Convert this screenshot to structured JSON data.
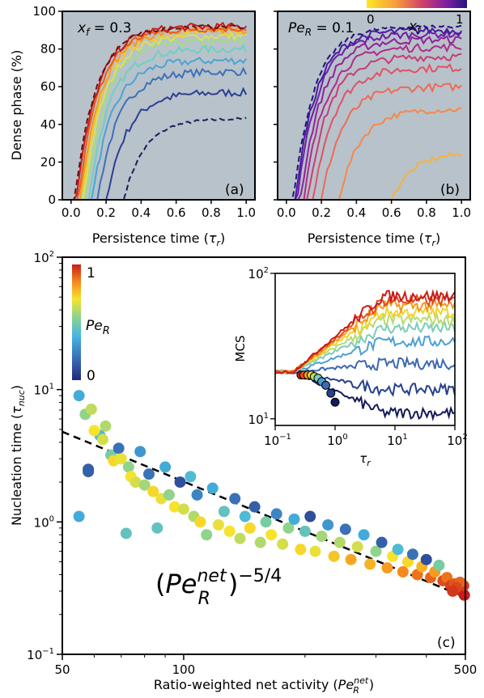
{
  "chart_data": [
    {
      "id": "a",
      "type": "line",
      "panel_label": "(a)",
      "annotation": "x_f = 0.3",
      "ylabel": "Dense phase (%)",
      "xlabel": "Persistence time (τ_r)",
      "xlim": [
        -0.05,
        1.05
      ],
      "ylim": [
        0,
        100
      ],
      "xticks": [
        "0.0",
        "0.2",
        "0.4",
        "0.6",
        "0.8",
        "1.0"
      ],
      "yticks": [
        "0",
        "20",
        "40",
        "60",
        "80",
        "100"
      ],
      "background": "#b8c2ca",
      "series": [
        {
          "color": "#1d1a5e",
          "dashed": true,
          "onset": 0.3,
          "plateau": 43
        },
        {
          "color": "#2a3f93",
          "onset": 0.2,
          "plateau": 57
        },
        {
          "color": "#3f6fb8",
          "onset": 0.15,
          "plateau": 68
        },
        {
          "color": "#4aa4d6",
          "onset": 0.12,
          "plateau": 74
        },
        {
          "color": "#6fcfc3",
          "onset": 0.1,
          "plateau": 80
        },
        {
          "color": "#a3dc83",
          "onset": 0.08,
          "plateau": 84
        },
        {
          "color": "#d7e35a",
          "onset": 0.07,
          "plateau": 87
        },
        {
          "color": "#f8c92b",
          "onset": 0.06,
          "plateau": 89
        },
        {
          "color": "#f59b1d",
          "onset": 0.05,
          "plateau": 90
        },
        {
          "color": "#ea5b1c",
          "onset": 0.04,
          "plateau": 91
        },
        {
          "color": "#c51b1b",
          "onset": 0.03,
          "plateau": 92
        },
        {
          "color": "#6b0f0f",
          "dashed": true,
          "onset": 0.02,
          "plateau": 92
        }
      ]
    },
    {
      "id": "b",
      "type": "line",
      "panel_label": "(b)",
      "annotation": "Pe_R = 0.1",
      "colorbar_label": "x_f",
      "colorbar_min": "0",
      "colorbar_max": "1",
      "xlabel": "Persistence time (τ_r)",
      "xlim": [
        -0.05,
        1.05
      ],
      "ylim": [
        0,
        100
      ],
      "xticks": [
        "0.0",
        "0.2",
        "0.4",
        "0.6",
        "0.8",
        "1.0"
      ],
      "background": "#b8c2ca",
      "series": [
        {
          "color": "#f5e12a",
          "dashed": true,
          "onset": 2.0,
          "plateau": 0
        },
        {
          "color": "#f7b23b",
          "onset": 0.6,
          "plateau": 25
        },
        {
          "color": "#f5894a",
          "onset": 0.3,
          "plateau": 48
        },
        {
          "color": "#ee6a55",
          "onset": 0.2,
          "plateau": 60
        },
        {
          "color": "#e05265",
          "onset": 0.15,
          "plateau": 70
        },
        {
          "color": "#c83c78",
          "onset": 0.12,
          "plateau": 76
        },
        {
          "color": "#ad2d8b",
          "onset": 0.1,
          "plateau": 81
        },
        {
          "color": "#8f239a",
          "onset": 0.08,
          "plateau": 85
        },
        {
          "color": "#6d1fa3",
          "onset": 0.06,
          "plateau": 88
        },
        {
          "color": "#4a1aa0",
          "onset": 0.05,
          "plateau": 90
        },
        {
          "color": "#20157a",
          "dashed": true,
          "onset": 0.04,
          "plateau": 92
        }
      ]
    },
    {
      "id": "c",
      "type": "scatter",
      "panel_label": "(c)",
      "xlabel": "Ratio-weighted net activity (Pe_R^net)",
      "ylabel": "Nucleation time (τ_nuc)",
      "xscale": "log",
      "yscale": "log",
      "xlim": [
        50,
        500
      ],
      "ylim": [
        0.1,
        100
      ],
      "xticks": [
        "50",
        "100",
        "500"
      ],
      "yticks": [
        "10^-1",
        "10^0",
        "10^1",
        "10^2"
      ],
      "colorbar_label": "Pe_R",
      "colorbar_min": "0",
      "colorbar_max": "1",
      "fit_label": "(Pe_R^net)^-5/4",
      "fit_line": [
        [
          50,
          4.8
        ],
        [
          500,
          0.27
        ]
      ],
      "points": [
        [
          55,
          9.0,
          0.35
        ],
        [
          55,
          1.1,
          0.35
        ],
        [
          58,
          2.4,
          0.15
        ],
        [
          58,
          2.5,
          0.15
        ],
        [
          57,
          6.5,
          0.55
        ],
        [
          59,
          7.1,
          0.62
        ],
        [
          62,
          4.5,
          0.4
        ],
        [
          60,
          4.9,
          0.7
        ],
        [
          63,
          4.2,
          0.65
        ],
        [
          64,
          5.3,
          0.6
        ],
        [
          66,
          3.2,
          0.5
        ],
        [
          67,
          2.9,
          0.72
        ],
        [
          69,
          3.6,
          0.2
        ],
        [
          70,
          3.0,
          0.68
        ],
        [
          72,
          0.82,
          0.45
        ],
        [
          73,
          2.6,
          0.55
        ],
        [
          74,
          2.2,
          0.7
        ],
        [
          76,
          2.0,
          0.65
        ],
        [
          78,
          3.4,
          0.3
        ],
        [
          80,
          1.9,
          0.58
        ],
        [
          82,
          2.3,
          0.2
        ],
        [
          84,
          1.7,
          0.72
        ],
        [
          86,
          0.9,
          0.45
        ],
        [
          88,
          1.5,
          0.68
        ],
        [
          90,
          2.6,
          0.35
        ],
        [
          92,
          1.6,
          0.55
        ],
        [
          95,
          1.3,
          0.7
        ],
        [
          98,
          2.0,
          0.1
        ],
        [
          100,
          1.25,
          0.65
        ],
        [
          104,
          2.2,
          0.4
        ],
        [
          106,
          1.1,
          0.6
        ],
        [
          108,
          1.6,
          0.25
        ],
        [
          110,
          1.0,
          0.72
        ],
        [
          114,
          0.8,
          0.55
        ],
        [
          118,
          1.8,
          0.35
        ],
        [
          122,
          0.95,
          0.68
        ],
        [
          126,
          1.2,
          0.45
        ],
        [
          130,
          0.85,
          0.7
        ],
        [
          134,
          1.5,
          0.2
        ],
        [
          138,
          0.75,
          0.62
        ],
        [
          142,
          1.1,
          0.4
        ],
        [
          146,
          0.9,
          0.72
        ],
        [
          150,
          1.3,
          0.15
        ],
        [
          155,
          0.7,
          0.6
        ],
        [
          160,
          1.0,
          0.5
        ],
        [
          165,
          0.8,
          0.7
        ],
        [
          170,
          1.15,
          0.25
        ],
        [
          176,
          0.68,
          0.65
        ],
        [
          182,
          0.9,
          0.55
        ],
        [
          188,
          1.05,
          0.35
        ],
        [
          195,
          0.62,
          0.72
        ],
        [
          200,
          0.85,
          0.45
        ],
        [
          206,
          1.1,
          0.1
        ],
        [
          212,
          0.6,
          0.68
        ],
        [
          220,
          0.78,
          0.58
        ],
        [
          228,
          0.95,
          0.3
        ],
        [
          236,
          0.55,
          0.75
        ],
        [
          244,
          0.7,
          0.6
        ],
        [
          252,
          0.88,
          0.2
        ],
        [
          260,
          0.52,
          0.8
        ],
        [
          270,
          0.65,
          0.65
        ],
        [
          280,
          0.8,
          0.35
        ],
        [
          290,
          0.48,
          0.78
        ],
        [
          300,
          0.6,
          0.55
        ],
        [
          310,
          0.7,
          0.15
        ],
        [
          320,
          0.45,
          0.82
        ],
        [
          330,
          0.55,
          0.7
        ],
        [
          340,
          0.62,
          0.4
        ],
        [
          350,
          0.42,
          0.85
        ],
        [
          360,
          0.5,
          0.72
        ],
        [
          370,
          0.57,
          0.2
        ],
        [
          380,
          0.4,
          0.88
        ],
        [
          390,
          0.46,
          0.78
        ],
        [
          400,
          0.52,
          0.1
        ],
        [
          410,
          0.38,
          0.9
        ],
        [
          420,
          0.42,
          0.82
        ],
        [
          430,
          0.47,
          0.5
        ],
        [
          440,
          0.36,
          0.93
        ],
        [
          450,
          0.38,
          0.88
        ],
        [
          460,
          0.33,
          0.95
        ],
        [
          470,
          0.34,
          0.92
        ],
        [
          480,
          0.31,
          0.97
        ],
        [
          490,
          0.3,
          0.98
        ],
        [
          497,
          0.28,
          1.0
        ],
        [
          495,
          0.33,
          0.96
        ],
        [
          485,
          0.35,
          0.9
        ],
        [
          475,
          0.32,
          0.94
        ],
        [
          465,
          0.3,
          0.96
        ]
      ]
    },
    {
      "id": "c-inset",
      "type": "line",
      "ylabel": "MCS",
      "xlabel": "τ_r",
      "xscale": "log",
      "yscale": "log",
      "xlim": [
        0.1,
        100
      ],
      "ylim": [
        9,
        100
      ],
      "xticks": [
        "10^-1",
        "10^0",
        "10^1",
        "10^2"
      ],
      "yticks": [
        "10^1",
        "10^2"
      ],
      "series": [
        {
          "color": "#151a5c",
          "final": 11,
          "circle_x": 1.0,
          "circle_y": 13
        },
        {
          "color": "#28408f",
          "final": 16,
          "circle_x": 0.85,
          "circle_y": 15
        },
        {
          "color": "#3f68b0",
          "final": 24,
          "circle_x": 0.7,
          "circle_y": 17
        },
        {
          "color": "#4f9fd4",
          "final": 34,
          "circle_x": 0.6,
          "circle_y": 18
        },
        {
          "color": "#7ccdb5",
          "final": 42,
          "circle_x": 0.52,
          "circle_y": 19
        },
        {
          "color": "#b6dc6f",
          "final": 48,
          "circle_x": 0.45,
          "circle_y": 19.5
        },
        {
          "color": "#f2d32c",
          "final": 54,
          "circle_x": 0.4,
          "circle_y": 20
        },
        {
          "color": "#f59a1e",
          "final": 60,
          "circle_x": 0.35,
          "circle_y": 20
        },
        {
          "color": "#e34d1b",
          "final": 65,
          "circle_x": 0.3,
          "circle_y": 20
        },
        {
          "color": "#c81a1a",
          "final": 70,
          "circle_x": 0.27,
          "circle_y": 20
        }
      ]
    }
  ]
}
